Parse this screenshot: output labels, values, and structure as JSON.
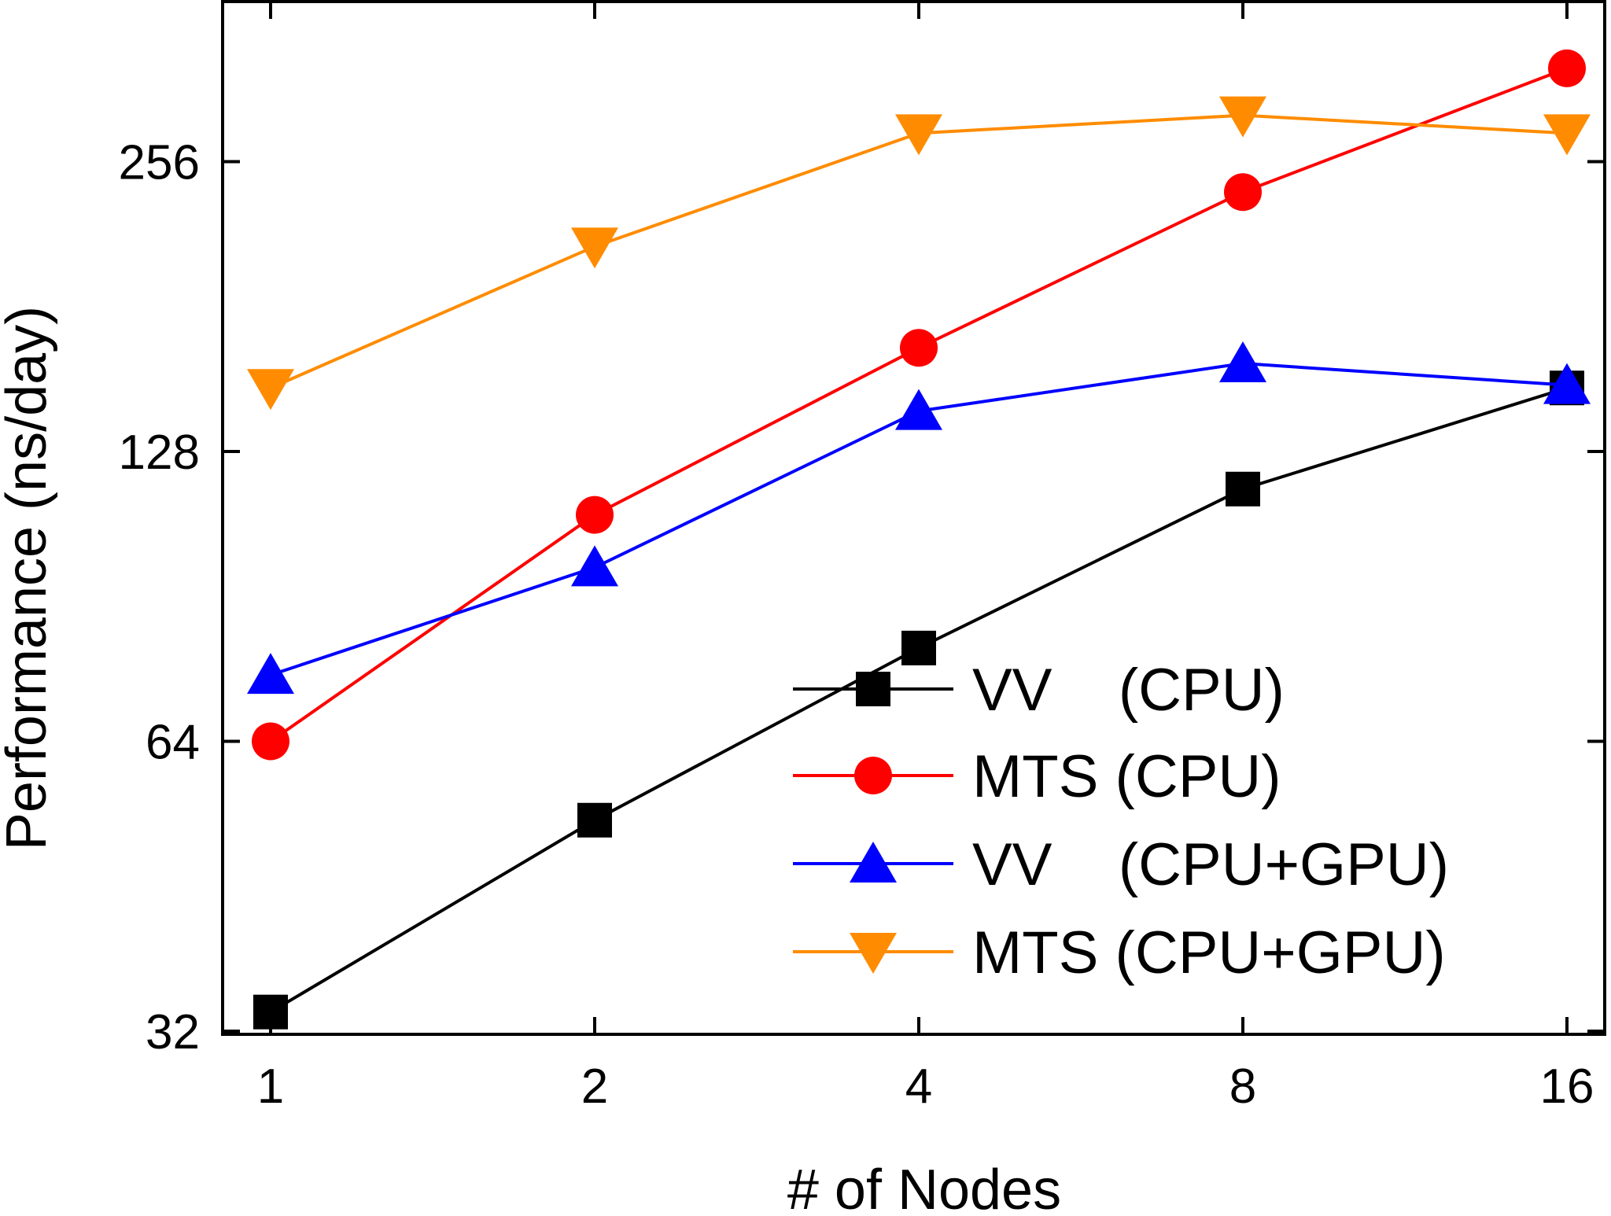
{
  "chart_data": {
    "type": "line",
    "title": "",
    "xlabel": "# of Nodes",
    "ylabel": "Performance (ns/day)",
    "x_scale": "log2",
    "y_scale": "log2",
    "x": [
      1,
      2,
      4,
      8,
      16
    ],
    "x_tick_labels": [
      "1",
      "2",
      "4",
      "8",
      "16"
    ],
    "xlim": [
      0.9,
      18
    ],
    "y_ticks": [
      32,
      64,
      128,
      256
    ],
    "y_tick_labels": [
      "32",
      "64",
      "128",
      "256"
    ],
    "ylim": [
      32,
      370
    ],
    "grid": false,
    "legend_position": "lower-right",
    "series": [
      {
        "name": "VV    (CPU)",
        "color": "#000000",
        "marker": "square",
        "values": [
          33.5,
          53,
          80,
          117,
          149
        ]
      },
      {
        "name": "MTS (CPU)",
        "color": "#ff0000",
        "marker": "circle",
        "values": [
          64,
          110,
          164,
          238,
          320
        ]
      },
      {
        "name": "VV    (CPU+GPU)",
        "color": "#0000ff",
        "marker": "triangle-up",
        "values": [
          75,
          97,
          141,
          158,
          150
        ]
      },
      {
        "name": "MTS (CPU+GPU)",
        "color": "#ff8c00",
        "marker": "triangle-down",
        "values": [
          149,
          209,
          274,
          286,
          274
        ]
      }
    ]
  }
}
